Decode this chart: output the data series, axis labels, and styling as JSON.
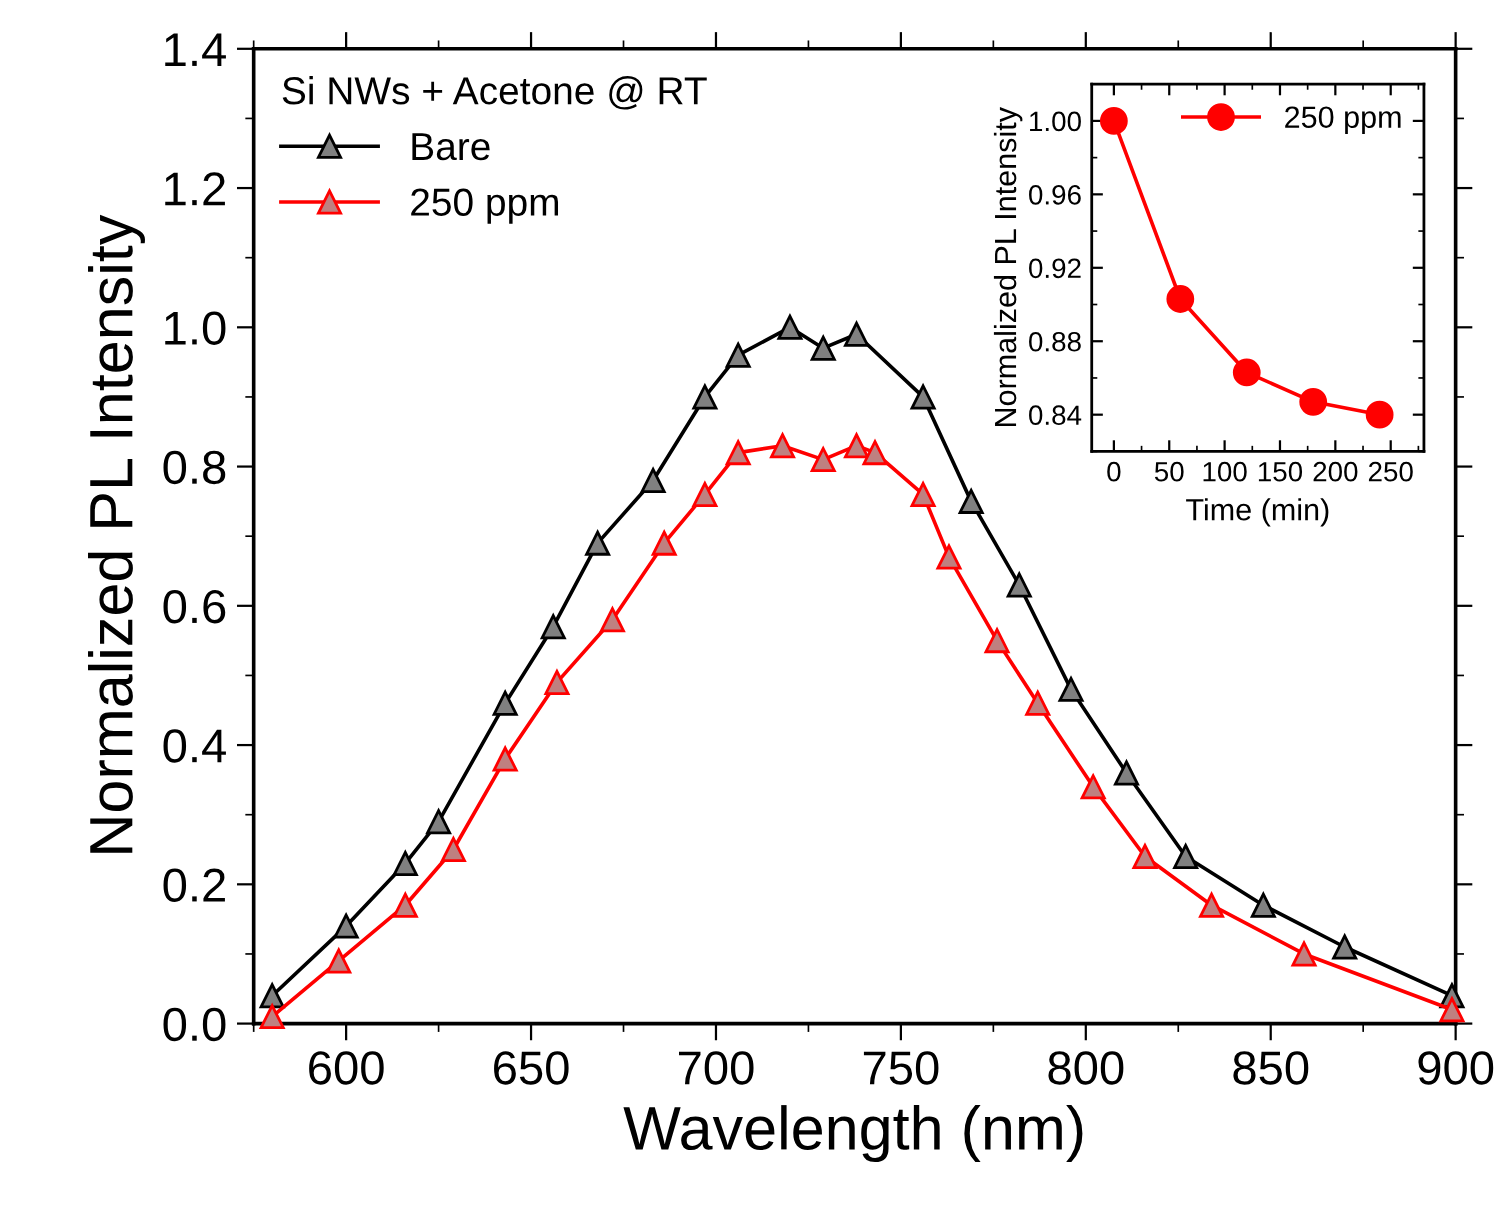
{
  "chart_data": [
    {
      "type": "line",
      "xlabel": "Wavelength (nm)",
      "ylabel": "Normalized PL Intensity",
      "legend_title": "Si NWs + Acetone @ RT",
      "legend": "top left",
      "marker": "triangle",
      "line_style": "solid",
      "grid": false,
      "xlim": [
        575,
        900
      ],
      "xticks": [
        600,
        650,
        700,
        750,
        800,
        850,
        900
      ],
      "ylim": [
        0,
        1.4
      ],
      "yticks": [
        {
          "value": 0,
          "label": "0.0"
        },
        {
          "value": 0.2,
          "label": "0.2"
        },
        {
          "value": 0.4,
          "label": "0.4"
        },
        {
          "value": 0.6,
          "label": "0.6"
        },
        {
          "value": 0.8,
          "label": "0.8"
        },
        {
          "value": 1.0,
          "label": "1.0"
        },
        {
          "value": 1.2,
          "label": "1.2"
        },
        {
          "value": 1.4,
          "label": "1.4"
        }
      ],
      "series": [
        {
          "name": "Bare",
          "color": "#000000",
          "x": [
            580,
            600,
            616,
            625,
            643,
            656,
            668,
            683,
            697,
            706,
            720,
            729,
            738,
            756,
            769,
            782,
            796,
            811,
            827,
            848,
            870,
            899
          ],
          "values": [
            0.04,
            0.14,
            0.23,
            0.29,
            0.46,
            0.57,
            0.69,
            0.78,
            0.9,
            0.96,
            1.0,
            0.97,
            0.99,
            0.9,
            0.75,
            0.63,
            0.48,
            0.36,
            0.24,
            0.17,
            0.11,
            0.04
          ]
        },
        {
          "name": "250 ppm",
          "color": "#ff0000",
          "x": [
            580,
            598,
            616,
            629,
            643,
            657,
            672,
            686,
            697,
            706,
            718,
            729,
            738,
            743,
            756,
            763,
            776,
            787,
            802,
            816,
            834,
            859,
            899
          ],
          "values": [
            0.01,
            0.09,
            0.17,
            0.25,
            0.38,
            0.49,
            0.58,
            0.69,
            0.76,
            0.82,
            0.83,
            0.81,
            0.83,
            0.82,
            0.76,
            0.67,
            0.55,
            0.46,
            0.34,
            0.24,
            0.17,
            0.1,
            0.02
          ]
        }
      ]
    },
    {
      "type": "line",
      "xlabel": "Time (min)",
      "ylabel": "Normalized PL Intensity",
      "legend": "top right",
      "marker": "circle",
      "line_style": "solid",
      "grid": false,
      "xlim": [
        -20,
        280
      ],
      "xticks": [
        0,
        50,
        100,
        150,
        200,
        250
      ],
      "ylim": [
        0.82,
        1.02
      ],
      "yticks": [
        {
          "value": 0.84,
          "label": "0.84"
        },
        {
          "value": 0.88,
          "label": "0.88"
        },
        {
          "value": 0.92,
          "label": "0.92"
        },
        {
          "value": 0.96,
          "label": "0.96"
        },
        {
          "value": 1.0,
          "label": "1.00"
        }
      ],
      "series": [
        {
          "name": "250 ppm",
          "color": "#ff0000",
          "x": [
            0,
            60,
            120,
            180,
            240
          ],
          "values": [
            1.0,
            0.903,
            0.863,
            0.847,
            0.84
          ]
        }
      ]
    }
  ]
}
